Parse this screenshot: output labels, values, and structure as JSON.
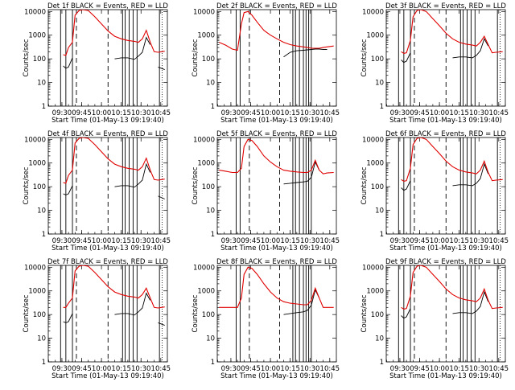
{
  "xtick_labels": [
    "09:30",
    "09:45",
    "10:00",
    "10:15",
    "10:30",
    "10:45"
  ],
  "ytick_labels": [
    "1",
    "10",
    "100",
    "1000",
    "10000"
  ],
  "ylabel": "Counts/sec",
  "xlabel": "Start Time (01-May-13 09:19:40)",
  "chart_data": [
    {
      "type": "line",
      "title": "Det 1f BLACK = Events, RED = LLD",
      "xlabel": "Start Time (01-May-13 09:19:40)",
      "ylabel": "Counts/sec",
      "yscale": "log",
      "ylim": [
        1,
        12000
      ],
      "xlim": [
        "09:19:40",
        "10:50:00"
      ],
      "x": [
        "09:26",
        "09:31",
        "09:33",
        "09:35",
        "09:38",
        "09:40",
        "09:43",
        "09:46",
        "09:50",
        "09:55",
        "10:00",
        "10:05",
        "10:10",
        "10:15",
        "10:20",
        "10:25",
        "10:28",
        "10:31",
        "10:34",
        "10:37",
        "10:40",
        "10:43",
        "10:48"
      ],
      "series": [
        {
          "name": "BLACK = Events",
          "color": "#000000",
          "values": [
            null,
            50,
            40,
            45,
            110,
            null,
            null,
            null,
            null,
            null,
            null,
            null,
            100,
            110,
            110,
            95,
            130,
            190,
            800,
            400,
            null,
            45,
            35
          ]
        },
        {
          "name": "RED = LLD",
          "color": "#e00000",
          "values": [
            null,
            150,
            140,
            300,
            500,
            7000,
            11000,
            12000,
            11000,
            6000,
            3000,
            1500,
            900,
            700,
            600,
            550,
            500,
            700,
            1600,
            500,
            200,
            190,
            210
          ]
        }
      ],
      "markers": {
        "solid": [
          "09:29",
          "09:33",
          "09:38",
          "10:16",
          "10:18",
          "10:21",
          "10:24",
          "10:27",
          "10:44"
        ],
        "dashed": [
          "09:41",
          "10:05"
        ],
        "dotted": [
          "10:46"
        ]
      }
    },
    {
      "type": "line",
      "title": "Det 2f BLACK = Events, RED = LLD",
      "xlabel": "Start Time (01-May-13 09:19:40)",
      "ylabel": "Counts/sec",
      "yscale": "log",
      "ylim": [
        1,
        12000
      ],
      "xlim": [
        "09:19:40",
        "10:50:00"
      ],
      "x": [
        "09:21",
        "09:26",
        "09:31",
        "09:35",
        "09:38",
        "09:40",
        "09:43",
        "09:46",
        "09:50",
        "09:55",
        "10:00",
        "10:05",
        "10:10",
        "10:15",
        "10:20",
        "10:25",
        "10:28",
        "10:31",
        "10:34",
        "10:37",
        "10:40",
        "10:43",
        "10:48"
      ],
      "series": [
        {
          "name": "BLACK = Events",
          "color": "#000000",
          "values": [
            null,
            null,
            null,
            null,
            null,
            null,
            null,
            null,
            null,
            null,
            null,
            null,
            120,
            190,
            220,
            230,
            240,
            250,
            260,
            260,
            250,
            250,
            null
          ]
        },
        {
          "name": "RED = LLD",
          "color": "#e00000",
          "values": [
            500,
            380,
            260,
            230,
            3000,
            9000,
            10000,
            7000,
            3500,
            1600,
            1000,
            700,
            500,
            400,
            350,
            320,
            300,
            280,
            280,
            280,
            300,
            320,
            350
          ]
        }
      ],
      "markers": {
        "solid": [
          "09:34",
          "09:37",
          "10:17",
          "10:19",
          "10:22",
          "10:25",
          "10:27",
          "10:29",
          "10:31"
        ],
        "dashed": [
          "09:44",
          "10:07"
        ],
        "dotted": []
      }
    },
    {
      "type": "line",
      "title": "Det 3f BLACK = Events, RED = LLD",
      "xlabel": "Start Time (01-May-13 09:19:40)",
      "ylabel": "Counts/sec",
      "yscale": "log",
      "ylim": [
        1,
        12000
      ],
      "xlim": [
        "09:19:40",
        "10:50:00"
      ],
      "x": [
        "09:26",
        "09:31",
        "09:33",
        "09:35",
        "09:38",
        "09:40",
        "09:43",
        "09:46",
        "09:50",
        "09:55",
        "10:00",
        "10:05",
        "10:10",
        "10:15",
        "10:20",
        "10:25",
        "10:28",
        "10:31",
        "10:34",
        "10:37",
        "10:40",
        "10:43",
        "10:48"
      ],
      "series": [
        {
          "name": "BLACK = Events",
          "color": "#000000",
          "values": [
            null,
            90,
            70,
            80,
            180,
            null,
            null,
            null,
            null,
            null,
            null,
            null,
            110,
            120,
            120,
            110,
            140,
            220,
            700,
            350,
            null,
            null,
            null
          ]
        },
        {
          "name": "RED = LLD",
          "color": "#e00000",
          "values": [
            null,
            200,
            170,
            180,
            600,
            6000,
            11000,
            12000,
            10000,
            5000,
            2500,
            1200,
            700,
            500,
            420,
            380,
            350,
            500,
            900,
            400,
            180,
            190,
            200
          ]
        }
      ],
      "markers": {
        "solid": [
          "09:29",
          "09:33",
          "09:38",
          "10:16",
          "10:18",
          "10:21",
          "10:24",
          "10:27",
          "10:44"
        ],
        "dashed": [
          "09:41",
          "10:05"
        ],
        "dotted": [
          "10:46"
        ]
      }
    },
    {
      "type": "line",
      "title": "Det 4f BLACK = Events, RED = LLD",
      "xlabel": "Start Time (01-May-13 09:19:40)",
      "ylabel": "Counts/sec",
      "yscale": "log",
      "ylim": [
        1,
        12000
      ],
      "xlim": [
        "09:19:40",
        "10:50:00"
      ],
      "x": [
        "09:26",
        "09:31",
        "09:33",
        "09:35",
        "09:38",
        "09:40",
        "09:43",
        "09:46",
        "09:50",
        "09:55",
        "10:00",
        "10:05",
        "10:10",
        "10:15",
        "10:20",
        "10:25",
        "10:28",
        "10:31",
        "10:34",
        "10:37",
        "10:40",
        "10:43",
        "10:48"
      ],
      "series": [
        {
          "name": "BLACK = Events",
          "color": "#000000",
          "values": [
            null,
            50,
            45,
            50,
            110,
            null,
            null,
            null,
            null,
            null,
            null,
            null,
            100,
            110,
            110,
            95,
            130,
            190,
            900,
            400,
            null,
            40,
            30
          ]
        },
        {
          "name": "RED = LLD",
          "color": "#e00000",
          "values": [
            null,
            150,
            140,
            300,
            500,
            7000,
            11000,
            12000,
            11000,
            6000,
            3000,
            1500,
            900,
            700,
            600,
            550,
            500,
            700,
            1600,
            500,
            200,
            190,
            210
          ]
        }
      ],
      "markers": {
        "solid": [
          "09:29",
          "09:33",
          "09:38",
          "10:16",
          "10:18",
          "10:21",
          "10:24",
          "10:27",
          "10:44"
        ],
        "dashed": [
          "09:41",
          "10:05"
        ],
        "dotted": [
          "10:46"
        ]
      }
    },
    {
      "type": "line",
      "title": "Det 5f BLACK = Events, RED = LLD",
      "xlabel": "Start Time (01-May-13 09:19:40)",
      "ylabel": "Counts/sec",
      "yscale": "log",
      "ylim": [
        1,
        12000
      ],
      "xlim": [
        "09:19:40",
        "10:50:00"
      ],
      "x": [
        "09:21",
        "09:26",
        "09:31",
        "09:35",
        "09:38",
        "09:40",
        "09:43",
        "09:46",
        "09:50",
        "09:55",
        "10:00",
        "10:05",
        "10:10",
        "10:15",
        "10:20",
        "10:25",
        "10:28",
        "10:31",
        "10:34",
        "10:37",
        "10:40",
        "10:43",
        "10:48"
      ],
      "series": [
        {
          "name": "BLACK = Events",
          "color": "#000000",
          "values": [
            null,
            null,
            null,
            null,
            null,
            null,
            null,
            null,
            null,
            null,
            null,
            null,
            130,
            140,
            150,
            160,
            170,
            250,
            1100,
            500,
            null,
            null,
            null
          ]
        },
        {
          "name": "RED = LLD",
          "color": "#e00000",
          "values": [
            500,
            450,
            400,
            400,
            600,
            5000,
            10000,
            9000,
            5000,
            2000,
            1100,
            700,
            500,
            450,
            420,
            400,
            400,
            500,
            1300,
            500,
            350,
            380,
            400
          ]
        }
      ],
      "markers": {
        "solid": [
          "09:34",
          "09:37",
          "10:17",
          "10:19",
          "10:22",
          "10:25",
          "10:27",
          "10:29",
          "10:31"
        ],
        "dashed": [
          "09:44",
          "10:07"
        ],
        "dotted": []
      }
    },
    {
      "type": "line",
      "title": "Det 6f BLACK = Events, RED = LLD",
      "xlabel": "Start Time (01-May-13 09:19:40)",
      "ylabel": "Counts/sec",
      "yscale": "log",
      "ylim": [
        1,
        12000
      ],
      "xlim": [
        "09:19:40",
        "10:50:00"
      ],
      "x": [
        "09:26",
        "09:31",
        "09:33",
        "09:35",
        "09:38",
        "09:40",
        "09:43",
        "09:46",
        "09:50",
        "09:55",
        "10:00",
        "10:05",
        "10:10",
        "10:15",
        "10:20",
        "10:25",
        "10:28",
        "10:31",
        "10:34",
        "10:37",
        "10:40",
        "10:43",
        "10:48"
      ],
      "series": [
        {
          "name": "BLACK = Events",
          "color": "#000000",
          "values": [
            null,
            90,
            70,
            80,
            180,
            null,
            null,
            null,
            null,
            null,
            null,
            null,
            110,
            120,
            120,
            110,
            140,
            220,
            900,
            350,
            null,
            null,
            null
          ]
        },
        {
          "name": "RED = LLD",
          "color": "#e00000",
          "values": [
            null,
            200,
            170,
            180,
            600,
            6000,
            11000,
            12000,
            10000,
            5000,
            2500,
            1200,
            700,
            500,
            420,
            380,
            350,
            500,
            1200,
            400,
            180,
            190,
            200
          ]
        }
      ],
      "markers": {
        "solid": [
          "09:29",
          "09:33",
          "09:38",
          "10:16",
          "10:18",
          "10:21",
          "10:24",
          "10:27",
          "10:44"
        ],
        "dashed": [
          "09:41",
          "10:05"
        ],
        "dotted": [
          "10:46"
        ]
      }
    },
    {
      "type": "line",
      "title": "Det 7f BLACK = Events, RED = LLD",
      "xlabel": "Start Time (01-May-13 09:19:40)",
      "ylabel": "Counts/sec",
      "yscale": "log",
      "ylim": [
        1,
        12000
      ],
      "xlim": [
        "09:19:40",
        "10:50:00"
      ],
      "x": [
        "09:26",
        "09:31",
        "09:33",
        "09:35",
        "09:38",
        "09:40",
        "09:43",
        "09:46",
        "09:50",
        "09:55",
        "10:00",
        "10:05",
        "10:10",
        "10:15",
        "10:20",
        "10:25",
        "10:28",
        "10:31",
        "10:34",
        "10:37",
        "10:40",
        "10:43",
        "10:48"
      ],
      "series": [
        {
          "name": "BLACK = Events",
          "color": "#000000",
          "values": [
            null,
            50,
            45,
            50,
            110,
            null,
            null,
            null,
            null,
            null,
            null,
            null,
            100,
            110,
            110,
            95,
            130,
            190,
            800,
            400,
            null,
            45,
            35
          ]
        },
        {
          "name": "RED = LLD",
          "color": "#e00000",
          "values": [
            null,
            200,
            200,
            300,
            500,
            7000,
            11000,
            12000,
            11000,
            6000,
            3000,
            1500,
            900,
            700,
            600,
            550,
            500,
            700,
            1300,
            500,
            200,
            190,
            210
          ]
        }
      ],
      "markers": {
        "solid": [
          "09:29",
          "09:33",
          "09:38",
          "10:16",
          "10:18",
          "10:21",
          "10:24",
          "10:27",
          "10:44"
        ],
        "dashed": [
          "09:41",
          "10:05"
        ],
        "dotted": [
          "10:46"
        ]
      }
    },
    {
      "type": "line",
      "title": "Det 8f BLACK = Events, RED = LLD",
      "xlabel": "Start Time (01-May-13 09:19:40)",
      "ylabel": "Counts/sec",
      "yscale": "log",
      "ylim": [
        1,
        12000
      ],
      "xlim": [
        "09:19:40",
        "10:50:00"
      ],
      "x": [
        "09:21",
        "09:26",
        "09:31",
        "09:35",
        "09:38",
        "09:40",
        "09:43",
        "09:46",
        "09:50",
        "09:55",
        "10:00",
        "10:05",
        "10:10",
        "10:15",
        "10:20",
        "10:25",
        "10:28",
        "10:31",
        "10:34",
        "10:37",
        "10:40",
        "10:43",
        "10:48"
      ],
      "series": [
        {
          "name": "BLACK = Events",
          "color": "#000000",
          "values": [
            null,
            null,
            null,
            null,
            null,
            null,
            null,
            null,
            null,
            null,
            null,
            null,
            100,
            110,
            120,
            130,
            150,
            250,
            1100,
            500,
            null,
            null,
            null
          ]
        },
        {
          "name": "RED = LLD",
          "color": "#e00000",
          "values": [
            200,
            200,
            200,
            200,
            500,
            5000,
            10000,
            9000,
            5000,
            2000,
            900,
            500,
            350,
            300,
            280,
            260,
            260,
            400,
            1300,
            500,
            200,
            200,
            200
          ]
        }
      ],
      "markers": {
        "solid": [
          "09:34",
          "09:37",
          "10:17",
          "10:19",
          "10:22",
          "10:25",
          "10:27",
          "10:29",
          "10:31"
        ],
        "dashed": [
          "09:44",
          "10:07"
        ],
        "dotted": []
      }
    },
    {
      "type": "line",
      "title": "Det 9f BLACK = Events, RED = LLD",
      "xlabel": "Start Time (01-May-13 09:19:40)",
      "ylabel": "Counts/sec",
      "yscale": "log",
      "ylim": [
        1,
        12000
      ],
      "xlim": [
        "09:19:40",
        "10:50:00"
      ],
      "x": [
        "09:26",
        "09:31",
        "09:33",
        "09:35",
        "09:38",
        "09:40",
        "09:43",
        "09:46",
        "09:50",
        "09:55",
        "10:00",
        "10:05",
        "10:10",
        "10:15",
        "10:20",
        "10:25",
        "10:28",
        "10:31",
        "10:34",
        "10:37",
        "10:40",
        "10:43",
        "10:48"
      ],
      "series": [
        {
          "name": "BLACK = Events",
          "color": "#000000",
          "values": [
            null,
            90,
            70,
            80,
            180,
            null,
            null,
            null,
            null,
            null,
            null,
            null,
            110,
            120,
            120,
            110,
            140,
            220,
            900,
            350,
            null,
            null,
            null
          ]
        },
        {
          "name": "RED = LLD",
          "color": "#e00000",
          "values": [
            null,
            200,
            170,
            180,
            600,
            6000,
            11000,
            12000,
            10000,
            5000,
            2500,
            1200,
            700,
            500,
            420,
            380,
            350,
            500,
            1200,
            400,
            180,
            190,
            200
          ]
        }
      ],
      "markers": {
        "solid": [
          "09:29",
          "09:33",
          "09:38",
          "10:16",
          "10:18",
          "10:21",
          "10:24",
          "10:27",
          "10:44"
        ],
        "dashed": [
          "09:41",
          "10:05"
        ],
        "dotted": [
          "10:46"
        ]
      }
    }
  ]
}
